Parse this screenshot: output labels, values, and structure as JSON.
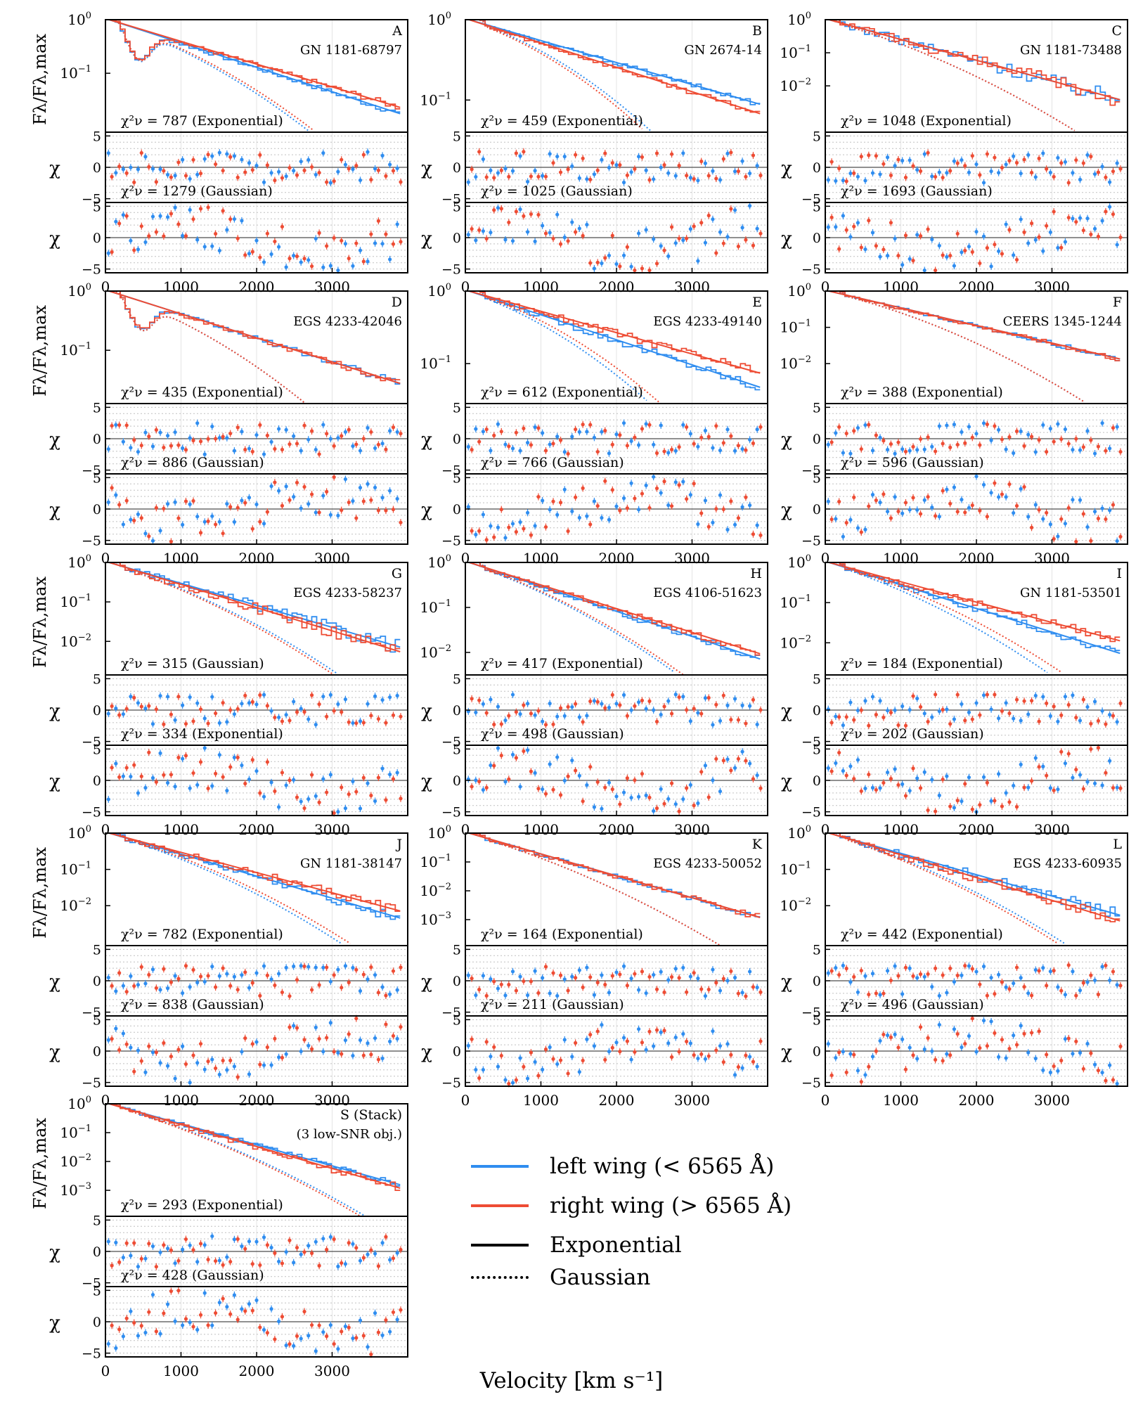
{
  "figure": {
    "xlabel": "Velocity [km s⁻¹]",
    "ylabel_top": "Fλ/Fλ,max",
    "ylabel_chi": "χ",
    "colors": {
      "left": "#2f8df0",
      "right": "#ee4c34",
      "grid": "#c0c0c0"
    }
  },
  "legend": {
    "items": [
      {
        "label": "left wing (< 6565 Å)",
        "style": "solid",
        "color": "#2f8df0"
      },
      {
        "label": "right wing (> 6565 Å)",
        "style": "solid",
        "color": "#ee4c34"
      },
      {
        "label": "Exponential",
        "style": "solid",
        "color": "#000000"
      },
      {
        "label": "Gaussian",
        "style": "dotted",
        "color": "#000000"
      }
    ]
  },
  "chart_data": [
    {
      "type": "line",
      "letter": "A",
      "name": "GN 1181-68797",
      "ylog_min": -2.1,
      "xlim": [
        0,
        4000
      ],
      "xticks": [
        0,
        1000,
        2000,
        3000
      ],
      "chi_yticks": [
        5,
        0,
        -5
      ],
      "yticks_exp": [
        0,
        -1
      ],
      "chi1_label": "χ²ν = 787 (Exponential)",
      "chi2_label": "χ²ν = 1279 (Gaussian)",
      "slope_left": -0.45,
      "slope_right": -0.42,
      "dip": [
        450,
        -0.55
      ],
      "noise": 0.08
    },
    {
      "type": "line",
      "letter": "B",
      "name": "GN 2674-14",
      "ylog_min": -1.4,
      "xlim": [
        0,
        4000
      ],
      "xticks": [
        0,
        1000,
        2000,
        3000
      ],
      "chi_yticks": [
        5,
        0,
        -5
      ],
      "yticks_exp": [
        0,
        -1
      ],
      "chi1_label": "χ²ν = 459 (Exponential)",
      "chi2_label": "χ²ν = 1025 (Gaussian)",
      "slope_left": -0.27,
      "slope_right": -0.3,
      "dip": [
        0,
        0
      ],
      "noise": 0.05
    },
    {
      "type": "line",
      "letter": "C",
      "name": "GN 1181-73488",
      "ylog_min": -3.4,
      "xlim": [
        0,
        4000
      ],
      "xticks": [
        0,
        1000,
        2000,
        3000
      ],
      "chi_yticks": [
        5,
        0,
        -5
      ],
      "yticks_exp": [
        0,
        -1,
        -2
      ],
      "chi1_label": "χ²ν = 1048 (Exponential)",
      "chi2_label": "χ²ν = 1693 (Gaussian)",
      "slope_left": -0.62,
      "slope_right": -0.62,
      "dip": [
        0,
        0
      ],
      "noise": 0.35
    },
    {
      "type": "line",
      "letter": "D",
      "name": "EGS 4233-42046",
      "ylog_min": -1.9,
      "xlim": [
        0,
        4000
      ],
      "xticks": [
        0,
        1000,
        2000,
        3000
      ],
      "chi_yticks": [
        5,
        0,
        -5
      ],
      "yticks_exp": [
        0,
        -1
      ],
      "chi1_label": "χ²ν = 435 (Exponential)",
      "chi2_label": "χ²ν = 886 (Gaussian)",
      "slope_left": -0.4,
      "slope_right": -0.4,
      "dip": [
        480,
        -0.45
      ],
      "noise": 0.08
    },
    {
      "type": "line",
      "letter": "E",
      "name": "EGS 4233-49140",
      "ylog_min": -1.55,
      "xlim": [
        0,
        4000
      ],
      "xticks": [
        0,
        1000,
        2000,
        3000
      ],
      "chi_yticks": [
        5,
        0,
        -5
      ],
      "yticks_exp": [
        0,
        -1
      ],
      "chi1_label": "χ²ν = 612 (Exponential)",
      "chi2_label": "χ²ν = 766 (Gaussian)",
      "slope_left": -0.34,
      "slope_right": -0.29,
      "dip": [
        0,
        0
      ],
      "noise": 0.1
    },
    {
      "type": "line",
      "letter": "F",
      "name": "CEERS 1345-1244",
      "ylog_min": -3.1,
      "xlim": [
        0,
        4000
      ],
      "xticks": [
        0,
        1000,
        2000,
        3000
      ],
      "chi_yticks": [
        5,
        0,
        -5
      ],
      "yticks_exp": [
        0,
        -1,
        -2
      ],
      "chi1_label": "χ²ν = 388 (Exponential)",
      "chi2_label": "χ²ν = 596 (Gaussian)",
      "slope_left": -0.48,
      "slope_right": -0.48,
      "dip": [
        0,
        0
      ],
      "noise": 0.1
    },
    {
      "type": "line",
      "letter": "G",
      "name": "EGS 4233-58237",
      "ylog_min": -2.85,
      "xlim": [
        0,
        4000
      ],
      "xticks": [
        0,
        1000,
        2000,
        3000
      ],
      "chi_yticks": [
        5,
        0,
        -5
      ],
      "yticks_exp": [
        0,
        -1,
        -2
      ],
      "chi1_label": "χ²ν = 315 (Gaussian)",
      "chi2_label": "χ²ν = 334 (Exponential)",
      "slope_left": -0.55,
      "slope_right": -0.58,
      "dip": [
        0,
        0
      ],
      "noise": 0.25
    },
    {
      "type": "line",
      "letter": "H",
      "name": "EGS 4106-51623",
      "ylog_min": -2.5,
      "xlim": [
        0,
        4000
      ],
      "xticks": [
        0,
        1000,
        2000,
        3000
      ],
      "chi_yticks": [
        5,
        0,
        -5
      ],
      "yticks_exp": [
        0,
        -1,
        -2
      ],
      "chi1_label": "χ²ν = 417 (Exponential)",
      "chi2_label": "χ²ν = 498 (Gaussian)",
      "slope_left": -0.55,
      "slope_right": -0.52,
      "dip": [
        0,
        0
      ],
      "noise": 0.12
    },
    {
      "type": "line",
      "letter": "I",
      "name": "GN 1181-53501",
      "ylog_min": -2.8,
      "xlim": [
        0,
        4000
      ],
      "xticks": [
        0,
        1000,
        2000,
        3000
      ],
      "chi_yticks": [
        5,
        0,
        -5
      ],
      "yticks_exp": [
        0,
        -1,
        -2
      ],
      "chi1_label": "χ²ν = 184 (Exponential)",
      "chi2_label": "χ²ν = 202 (Gaussian)",
      "slope_left": -0.58,
      "slope_right": -0.5,
      "dip": [
        0,
        0
      ],
      "noise": 0.15
    },
    {
      "type": "line",
      "letter": "J",
      "name": "GN 1181-38147",
      "ylog_min": -3.1,
      "xlim": [
        0,
        4000
      ],
      "xticks": [
        0,
        1000,
        2000,
        3000
      ],
      "chi_yticks": [
        5,
        0,
        -5
      ],
      "yticks_exp": [
        0,
        -1,
        -2
      ],
      "chi1_label": "χ²ν = 782 (Exponential)",
      "chi2_label": "χ²ν = 838 (Gaussian)",
      "slope_left": -0.6,
      "slope_right": -0.55,
      "dip": [
        0,
        0
      ],
      "noise": 0.2
    },
    {
      "type": "line",
      "letter": "K",
      "name": "EGS 4233-50052",
      "ylog_min": -3.9,
      "xlim": [
        0,
        4000
      ],
      "xticks": [
        0,
        1000,
        2000,
        3000
      ],
      "chi_yticks": [
        5,
        0,
        -5
      ],
      "yticks_exp": [
        0,
        -1,
        -2,
        -3
      ],
      "chi1_label": "χ²ν = 164 (Exponential)",
      "chi2_label": "χ²ν = 211 (Gaussian)",
      "slope_left": -0.75,
      "slope_right": -0.75,
      "dip": [
        0,
        0
      ],
      "noise": 0.15
    },
    {
      "type": "line",
      "letter": "L",
      "name": "EGS 4233-60935",
      "ylog_min": -3.1,
      "xlim": [
        0,
        4000
      ],
      "xticks": [
        0,
        1000,
        2000,
        3000
      ],
      "chi_yticks": [
        5,
        0,
        -5
      ],
      "yticks_exp": [
        0,
        -1,
        -2
      ],
      "chi1_label": "χ²ν = 442 (Exponential)",
      "chi2_label": "χ²ν = 496 (Gaussian)",
      "slope_left": -0.58,
      "slope_right": -0.62,
      "dip": [
        0,
        0
      ],
      "noise": 0.25
    },
    {
      "type": "line",
      "letter": "S",
      "name": "S (Stack)",
      "name2": "(3 low-SNR obj.)",
      "ylog_min": -3.9,
      "xlim": [
        0,
        4000
      ],
      "xticks": [
        0,
        1000,
        2000,
        3000
      ],
      "chi_yticks": [
        5,
        0,
        -5
      ],
      "yticks_exp": [
        0,
        -1,
        -2,
        -3
      ],
      "chi1_label": "χ²ν = 293 (Exponential)",
      "chi2_label": "χ²ν = 428 (Gaussian)",
      "slope_left": -0.72,
      "slope_right": -0.75,
      "dip": [
        0,
        0
      ],
      "noise": 0.2
    }
  ]
}
